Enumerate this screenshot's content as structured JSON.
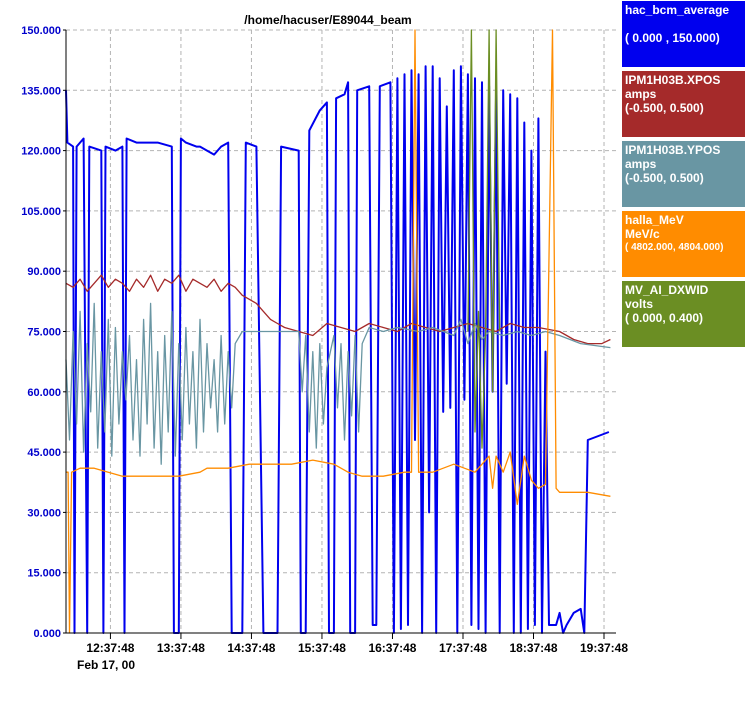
{
  "chart_data": {
    "type": "line",
    "title": "/home/hacuser/E89044_beam",
    "ylim": [
      0,
      150
    ],
    "y_ticks": [
      "0.000",
      "15.000",
      "30.000",
      "45.000",
      "60.000",
      "75.000",
      "90.000",
      "105.000",
      "120.000",
      "135.000",
      "150.000"
    ],
    "x_ticks": [
      "12:37:48",
      "13:37:48",
      "14:37:48",
      "15:37:48",
      "16:37:48",
      "17:37:48",
      "18:37:48",
      "19:37:48"
    ],
    "date_label": "Feb 17, 00",
    "grid": true,
    "legend_position": "right",
    "series": [
      {
        "name": "hac_bcm_average",
        "unit": "",
        "range": "( 0.000  ,  150.000)",
        "color": "#0000ee",
        "points": [
          [
            12.0,
            135
          ],
          [
            12.02,
            122
          ],
          [
            12.1,
            121
          ],
          [
            12.12,
            0
          ],
          [
            12.15,
            121
          ],
          [
            12.25,
            123
          ],
          [
            12.3,
            0
          ],
          [
            12.33,
            121
          ],
          [
            12.5,
            120
          ],
          [
            12.53,
            0
          ],
          [
            12.56,
            121
          ],
          [
            12.7,
            120
          ],
          [
            12.8,
            121
          ],
          [
            12.83,
            0
          ],
          [
            12.86,
            123
          ],
          [
            13.0,
            122
          ],
          [
            13.3,
            122
          ],
          [
            13.5,
            121
          ],
          [
            13.53,
            0
          ],
          [
            13.6,
            0
          ],
          [
            13.63,
            123
          ],
          [
            13.7,
            122
          ],
          [
            13.85,
            121
          ],
          [
            13.9,
            121
          ],
          [
            14.0,
            120
          ],
          [
            14.1,
            119
          ],
          [
            14.15,
            120
          ],
          [
            14.2,
            121
          ],
          [
            14.3,
            122
          ],
          [
            14.35,
            0
          ],
          [
            14.5,
            0
          ],
          [
            14.55,
            122
          ],
          [
            14.7,
            121
          ],
          [
            14.8,
            0
          ],
          [
            15.0,
            0
          ],
          [
            15.05,
            121
          ],
          [
            15.3,
            120
          ],
          [
            15.33,
            0
          ],
          [
            15.4,
            0
          ],
          [
            15.45,
            125
          ],
          [
            15.6,
            130
          ],
          [
            15.7,
            132
          ],
          [
            15.73,
            0
          ],
          [
            15.8,
            0
          ],
          [
            15.83,
            133
          ],
          [
            15.95,
            134
          ],
          [
            16.0,
            137
          ],
          [
            16.03,
            0
          ],
          [
            16.1,
            0
          ],
          [
            16.13,
            135
          ],
          [
            16.3,
            136
          ],
          [
            16.35,
            2
          ],
          [
            16.4,
            2
          ],
          [
            16.45,
            136
          ],
          [
            16.6,
            137
          ],
          [
            16.65,
            0
          ],
          [
            16.7,
            138
          ],
          [
            16.75,
            1
          ],
          [
            16.8,
            139
          ],
          [
            16.85,
            2
          ],
          [
            16.9,
            140
          ],
          [
            16.95,
            48
          ],
          [
            17.0,
            139
          ],
          [
            17.05,
            0
          ],
          [
            17.1,
            141
          ],
          [
            17.15,
            30
          ],
          [
            17.2,
            141
          ],
          [
            17.25,
            0
          ],
          [
            17.3,
            138
          ],
          [
            17.35,
            55
          ],
          [
            17.4,
            131
          ],
          [
            17.45,
            56
          ],
          [
            17.5,
            140
          ],
          [
            17.55,
            0
          ],
          [
            17.6,
            141
          ],
          [
            17.65,
            58
          ],
          [
            17.7,
            139
          ],
          [
            17.75,
            2
          ],
          [
            17.8,
            138
          ],
          [
            17.85,
            1
          ],
          [
            17.9,
            137
          ],
          [
            17.95,
            0
          ],
          [
            18.0,
            136
          ],
          [
            18.05,
            60
          ],
          [
            18.1,
            135
          ],
          [
            18.15,
            0
          ],
          [
            18.2,
            135
          ],
          [
            18.25,
            62
          ],
          [
            18.3,
            134
          ],
          [
            18.35,
            0
          ],
          [
            18.4,
            133
          ],
          [
            18.45,
            0
          ],
          [
            18.5,
            127
          ],
          [
            18.55,
            1
          ],
          [
            18.6,
            120
          ],
          [
            18.65,
            2
          ],
          [
            18.7,
            128
          ],
          [
            18.75,
            0
          ],
          [
            18.8,
            70
          ],
          [
            18.85,
            2
          ],
          [
            18.9,
            2
          ],
          [
            18.95,
            2
          ],
          [
            19.0,
            5
          ],
          [
            19.05,
            0
          ],
          [
            19.1,
            2
          ],
          [
            19.2,
            5
          ],
          [
            19.3,
            6
          ],
          [
            19.35,
            0
          ],
          [
            19.4,
            48
          ],
          [
            19.55,
            49
          ],
          [
            19.7,
            50
          ]
        ]
      },
      {
        "name": "IPM1H03B.XPOS",
        "unit": "amps",
        "range": "(-0.500,  0.500)",
        "color": "#a52a2a",
        "points": [
          [
            12.0,
            87
          ],
          [
            12.1,
            86
          ],
          [
            12.2,
            88
          ],
          [
            12.3,
            85
          ],
          [
            12.4,
            87
          ],
          [
            12.5,
            89
          ],
          [
            12.6,
            86
          ],
          [
            12.7,
            88
          ],
          [
            12.8,
            87
          ],
          [
            12.9,
            85
          ],
          [
            13.0,
            88
          ],
          [
            13.1,
            86
          ],
          [
            13.2,
            89
          ],
          [
            13.3,
            85
          ],
          [
            13.4,
            88
          ],
          [
            13.5,
            87
          ],
          [
            13.6,
            89
          ],
          [
            13.7,
            85
          ],
          [
            13.8,
            88
          ],
          [
            13.9,
            87
          ],
          [
            14.0,
            86
          ],
          [
            14.1,
            88
          ],
          [
            14.2,
            85
          ],
          [
            14.3,
            87
          ],
          [
            14.4,
            86
          ],
          [
            14.5,
            84
          ],
          [
            14.6,
            83
          ],
          [
            14.7,
            82
          ],
          [
            14.8,
            80
          ],
          [
            14.9,
            78
          ],
          [
            15.0,
            77
          ],
          [
            15.1,
            76
          ],
          [
            15.3,
            75
          ],
          [
            15.5,
            74
          ],
          [
            15.7,
            77
          ],
          [
            15.9,
            76
          ],
          [
            16.1,
            75
          ],
          [
            16.3,
            77
          ],
          [
            16.5,
            76
          ],
          [
            16.7,
            75
          ],
          [
            16.9,
            77
          ],
          [
            17.1,
            76
          ],
          [
            17.3,
            75
          ],
          [
            17.5,
            76
          ],
          [
            17.7,
            77
          ],
          [
            17.9,
            76
          ],
          [
            18.1,
            75
          ],
          [
            18.3,
            77
          ],
          [
            18.5,
            76
          ],
          [
            18.7,
            76
          ],
          [
            19.0,
            75
          ],
          [
            19.2,
            73
          ],
          [
            19.4,
            72
          ],
          [
            19.6,
            72
          ],
          [
            19.72,
            73
          ]
        ]
      },
      {
        "name": "IPM1H03B.YPOS",
        "unit": "amps",
        "range": "(-0.500,  0.500)",
        "color": "#6996a3",
        "points": [
          [
            12.0,
            68
          ],
          [
            12.05,
            48
          ],
          [
            12.1,
            75
          ],
          [
            12.15,
            52
          ],
          [
            12.2,
            80
          ],
          [
            12.25,
            45
          ],
          [
            12.3,
            72
          ],
          [
            12.35,
            55
          ],
          [
            12.4,
            82
          ],
          [
            12.45,
            46
          ],
          [
            12.5,
            70
          ],
          [
            12.55,
            50
          ],
          [
            12.6,
            78
          ],
          [
            12.65,
            44
          ],
          [
            12.7,
            76
          ],
          [
            12.75,
            52
          ],
          [
            12.8,
            70
          ],
          [
            12.85,
            58
          ],
          [
            12.9,
            74
          ],
          [
            12.95,
            48
          ],
          [
            13.0,
            68
          ],
          [
            13.05,
            44
          ],
          [
            13.1,
            78
          ],
          [
            13.15,
            52
          ],
          [
            13.2,
            82
          ],
          [
            13.25,
            46
          ],
          [
            13.3,
            70
          ],
          [
            13.35,
            42
          ],
          [
            13.4,
            74
          ],
          [
            13.45,
            50
          ],
          [
            13.5,
            80
          ],
          [
            13.55,
            44
          ],
          [
            13.6,
            72
          ],
          [
            13.65,
            48
          ],
          [
            13.7,
            76
          ],
          [
            13.75,
            52
          ],
          [
            13.8,
            70
          ],
          [
            13.85,
            46
          ],
          [
            13.9,
            78
          ],
          [
            13.95,
            50
          ],
          [
            14.0,
            72
          ],
          [
            14.05,
            56
          ],
          [
            14.1,
            68
          ],
          [
            14.15,
            50
          ],
          [
            14.2,
            74
          ],
          [
            14.25,
            52
          ],
          [
            14.3,
            70
          ],
          [
            14.35,
            56
          ],
          [
            14.4,
            72
          ],
          [
            14.5,
            75
          ],
          [
            15.0,
            75
          ],
          [
            15.3,
            75
          ],
          [
            15.35,
            60
          ],
          [
            15.4,
            74
          ],
          [
            15.45,
            50
          ],
          [
            15.5,
            70
          ],
          [
            15.55,
            46
          ],
          [
            15.6,
            72
          ],
          [
            15.65,
            52
          ],
          [
            15.7,
            66
          ],
          [
            15.8,
            74
          ],
          [
            15.85,
            56
          ],
          [
            15.9,
            72
          ],
          [
            15.95,
            48
          ],
          [
            16.0,
            70
          ],
          [
            16.05,
            54
          ],
          [
            16.1,
            74
          ],
          [
            16.15,
            50
          ],
          [
            16.2,
            72
          ],
          [
            16.3,
            76
          ],
          [
            16.5,
            75
          ],
          [
            16.7,
            76
          ],
          [
            17.0,
            75
          ],
          [
            17.2,
            76
          ],
          [
            17.5,
            74
          ],
          [
            17.6,
            78
          ],
          [
            17.7,
            72
          ],
          [
            17.8,
            77
          ],
          [
            17.9,
            73
          ],
          [
            18.0,
            75
          ],
          [
            18.2,
            74
          ],
          [
            18.4,
            75
          ],
          [
            18.6,
            74
          ],
          [
            18.8,
            75
          ],
          [
            19.0,
            74
          ],
          [
            19.3,
            72
          ],
          [
            19.72,
            71
          ]
        ]
      },
      {
        "name": "halla_MeV",
        "unit": "MeV/c",
        "range": "( 4802.000,  4804.000)",
        "color": "#ff8c00",
        "points": [
          [
            12.0,
            40
          ],
          [
            12.03,
            40
          ],
          [
            12.05,
            0
          ],
          [
            12.08,
            40
          ],
          [
            12.2,
            41
          ],
          [
            12.4,
            41
          ],
          [
            12.6,
            40
          ],
          [
            12.8,
            39
          ],
          [
            13.0,
            39
          ],
          [
            13.3,
            39
          ],
          [
            13.6,
            39
          ],
          [
            13.9,
            40
          ],
          [
            14.0,
            41
          ],
          [
            14.3,
            41
          ],
          [
            14.6,
            42
          ],
          [
            14.9,
            42
          ],
          [
            15.2,
            42
          ],
          [
            15.5,
            43
          ],
          [
            15.8,
            42
          ],
          [
            16.0,
            40
          ],
          [
            16.2,
            39
          ],
          [
            16.5,
            39
          ],
          [
            16.8,
            40
          ],
          [
            16.9,
            40
          ],
          [
            16.95,
            150
          ],
          [
            17.0,
            40
          ],
          [
            17.2,
            40
          ],
          [
            17.5,
            42
          ],
          [
            17.8,
            40
          ],
          [
            18.0,
            44
          ],
          [
            18.05,
            36
          ],
          [
            18.1,
            44
          ],
          [
            18.2,
            40
          ],
          [
            18.3,
            45
          ],
          [
            18.4,
            32
          ],
          [
            18.5,
            44
          ],
          [
            18.6,
            38
          ],
          [
            18.7,
            36
          ],
          [
            18.8,
            37
          ],
          [
            18.9,
            150
          ],
          [
            18.95,
            36
          ],
          [
            19.0,
            35
          ],
          [
            19.2,
            35
          ],
          [
            19.4,
            35
          ],
          [
            19.72,
            34
          ]
        ]
      },
      {
        "name": "MV_AI_DXWID",
        "unit": "volts",
        "range": "( 0.000,  0.400)",
        "color": "#6b8e23",
        "points": [
          [
            17.7,
            75
          ],
          [
            17.75,
            150
          ],
          [
            17.8,
            50
          ],
          [
            17.85,
            80
          ],
          [
            17.9,
            46
          ],
          [
            17.95,
            75
          ],
          [
            18.0,
            150
          ],
          [
            18.05,
            60
          ],
          [
            18.1,
            150
          ],
          [
            18.15,
            75
          ]
        ]
      }
    ]
  }
}
